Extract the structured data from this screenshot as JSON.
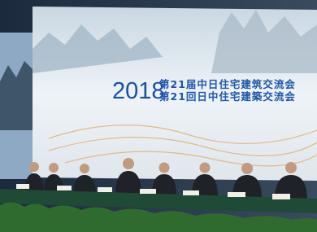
{
  "banner": {
    "year": "2018",
    "title_zh": "第21届中日住宅建筑交流会",
    "title_ja": "第21回日中住宅建築交流会"
  }
}
